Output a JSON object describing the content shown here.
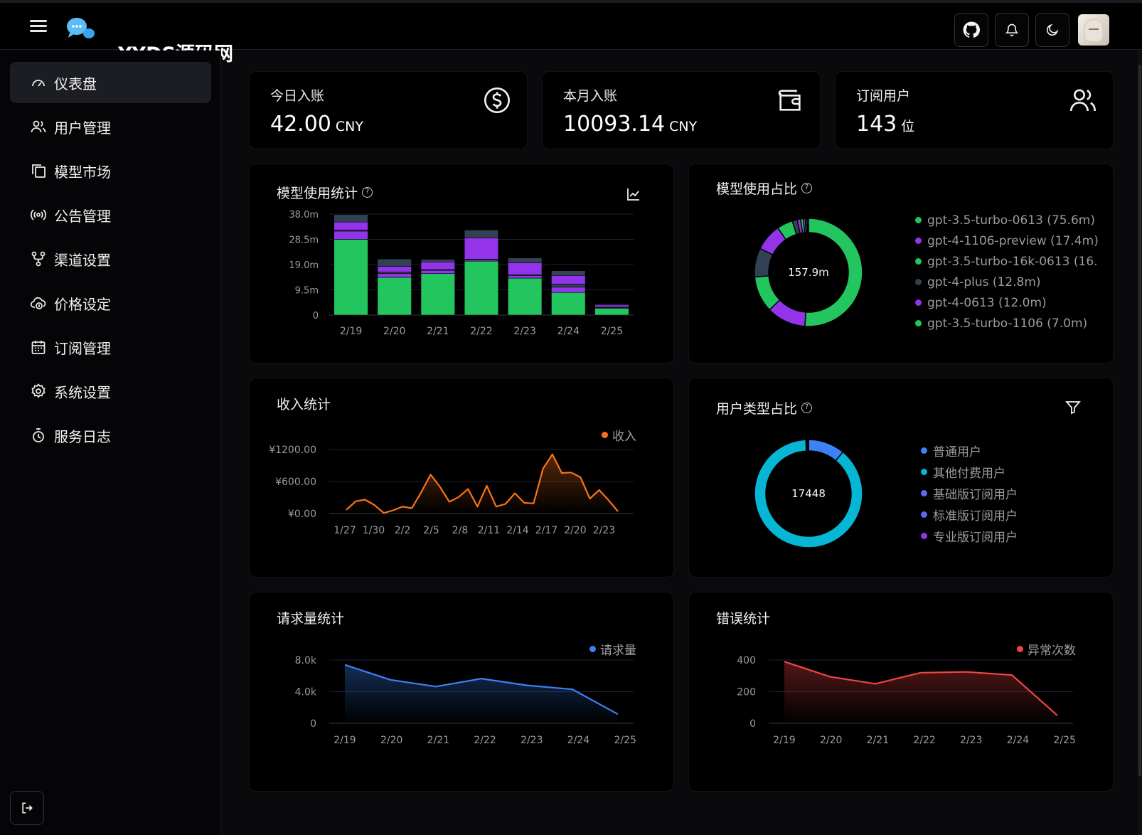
{
  "brand": {
    "watermark": "YYDS源码网"
  },
  "icons": {
    "menu": "hamburger-icon",
    "logo": "chat-bubbles-logo",
    "github": "github-icon",
    "bell": "bell-icon",
    "theme": "moon-icon",
    "logout": "logout-icon"
  },
  "sidebar": {
    "items": [
      {
        "label": "仪表盘",
        "icon": "gauge-icon",
        "active": true
      },
      {
        "label": "用户管理",
        "icon": "users-icon"
      },
      {
        "label": "模型市场",
        "icon": "copy-icon"
      },
      {
        "label": "公告管理",
        "icon": "broadcast-icon"
      },
      {
        "label": "渠道设置",
        "icon": "branches-icon"
      },
      {
        "label": "价格设定",
        "icon": "cloud-price-icon"
      },
      {
        "label": "订阅管理",
        "icon": "calendar-icon"
      },
      {
        "label": "系统设置",
        "icon": "gear-icon"
      },
      {
        "label": "服务日志",
        "icon": "log-icon"
      }
    ]
  },
  "stats": [
    {
      "title": "今日入账",
      "value": "42.00",
      "unit": "CNY",
      "icon": "dollar-circle-icon"
    },
    {
      "title": "本月入账",
      "value": "10093.14",
      "unit": "CNY",
      "icon": "wallet-icon"
    },
    {
      "title": "订阅用户",
      "value": "143",
      "unit": "位",
      "icon": "users-icon"
    }
  ],
  "cards": {
    "model_usage": {
      "title": "模型使用统计",
      "help": "?"
    },
    "model_share": {
      "title": "模型使用占比",
      "help": "?"
    },
    "income": {
      "title": "收入统计"
    },
    "user_type": {
      "title": "用户类型占比",
      "help": "?"
    },
    "requests": {
      "title": "请求量统计"
    },
    "errors": {
      "title": "错误统计"
    }
  },
  "colors": {
    "green": "#22c55e",
    "purple": "#9333ea",
    "slate": "#334155",
    "orange": "#f97316",
    "blue": "#3b82f6",
    "cyan": "#06b6d4",
    "red": "#ef4444",
    "indigo": "#6366f1"
  },
  "chart_data": [
    {
      "type": "bar",
      "id": "model_usage",
      "categories": [
        "2/19",
        "2/20",
        "2/21",
        "2/22",
        "2/23",
        "2/24",
        "2/25"
      ],
      "y_ticks": [
        "0",
        "9.5m",
        "19.0m",
        "28.5m",
        "38.0m"
      ],
      "ylim": [
        0,
        38
      ],
      "series": [
        {
          "values": [
            28.5,
            14.2,
            15.6,
            20.3,
            13.9,
            8.5,
            2.6
          ],
          "color": "#22c55e"
        },
        {
          "values": [
            3.1,
            1.4,
            1.2,
            0.4,
            0.9,
            2.0,
            0.2
          ],
          "color": "#9333ea"
        },
        {
          "values": [
            0.4,
            0.6,
            0.4,
            0.3,
            0.4,
            1.2,
            0.2
          ],
          "color": "#334155"
        },
        {
          "values": [
            3.0,
            2.1,
            2.8,
            8.0,
            4.5,
            3.2,
            0.8
          ],
          "color": "#9333ea"
        },
        {
          "values": [
            2.8,
            2.8,
            1.0,
            3.0,
            1.8,
            1.8,
            0.4
          ],
          "color": "#334155"
        }
      ]
    },
    {
      "type": "pie",
      "id": "model_share",
      "center_label": "157.9m",
      "slices": [
        {
          "label": "gpt-3.5-turbo-0613 (75.6m)",
          "value": 75.6,
          "color": "#22c55e"
        },
        {
          "label": "gpt-4-1106-preview (17.4m)",
          "value": 17.4,
          "color": "#9333ea"
        },
        {
          "label": "gpt-3.5-turbo-16k-0613 (16.",
          "value": 16.0,
          "color": "#22c55e"
        },
        {
          "label": "gpt-4-plus (12.8m)",
          "value": 12.8,
          "color": "#334155"
        },
        {
          "label": "gpt-4-0613 (12.0m)",
          "value": 12.0,
          "color": "#9333ea"
        },
        {
          "label": "gpt-3.5-turbo-1106 (7.0m)",
          "value": 7.0,
          "color": "#22c55e"
        },
        {
          "label": "",
          "value": 2.2,
          "color": "#334155"
        },
        {
          "label": "",
          "value": 1.5,
          "color": "#9333ea"
        },
        {
          "label": "",
          "value": 1.2,
          "color": "#22c55e"
        },
        {
          "label": "",
          "value": 0.9,
          "color": "#9333ea"
        },
        {
          "label": "",
          "value": 0.8,
          "color": "#334155"
        },
        {
          "label": "",
          "value": 0.6,
          "color": "#9333ea"
        }
      ]
    },
    {
      "type": "area",
      "id": "income",
      "legend": "收入",
      "color": "#f97316",
      "x_ticks": [
        "1/27",
        "1/30",
        "2/2",
        "2/5",
        "2/8",
        "2/11",
        "2/14",
        "2/17",
        "2/20",
        "2/23"
      ],
      "y_ticks": [
        "¥0.00",
        "¥600.00",
        "¥1200.00"
      ],
      "y_tick_values": [
        0,
        600,
        1200
      ],
      "ylim": [
        0,
        1200
      ],
      "values": [
        70,
        230,
        260,
        160,
        10,
        60,
        130,
        100,
        400,
        730,
        500,
        220,
        310,
        460,
        130,
        520,
        130,
        180,
        380,
        200,
        190,
        840,
        1110,
        760,
        770,
        680,
        280,
        440,
        250,
        40
      ]
    },
    {
      "type": "pie",
      "id": "user_type",
      "center_label": "17448",
      "slices": [
        {
          "label": "普通用户",
          "value": 11,
          "color": "#3b82f6"
        },
        {
          "label": "其他付费用户",
          "value": 88.2,
          "color": "#06b6d4"
        },
        {
          "label": "基础版订阅用户",
          "value": 0.3,
          "color": "#6366f1"
        },
        {
          "label": "标准版订阅用户",
          "value": 0.3,
          "color": "#6366f1"
        },
        {
          "label": "专业版订阅用户",
          "value": 0.2,
          "color": "#9333ea"
        }
      ]
    },
    {
      "type": "area",
      "id": "requests",
      "legend": "请求量",
      "color": "#3b82f6",
      "x_ticks": [
        "2/19",
        "2/20",
        "2/21",
        "2/22",
        "2/23",
        "2/24",
        "2/25"
      ],
      "y_ticks": [
        "0",
        "4.0k",
        "8.0k"
      ],
      "y_tick_values": [
        0,
        4000,
        8000
      ],
      "ylim": [
        0,
        8000
      ],
      "values": [
        7400,
        5500,
        4650,
        5650,
        4800,
        4300,
        1150
      ]
    },
    {
      "type": "area",
      "id": "errors",
      "legend": "异常次数",
      "color": "#ef4444",
      "x_ticks": [
        "2/19",
        "2/20",
        "2/21",
        "2/22",
        "2/23",
        "2/24",
        "2/25"
      ],
      "y_ticks": [
        "0",
        "200",
        "400"
      ],
      "y_tick_values": [
        0,
        200,
        400
      ],
      "ylim": [
        0,
        400
      ],
      "values": [
        390,
        295,
        250,
        320,
        325,
        305,
        50
      ]
    }
  ]
}
